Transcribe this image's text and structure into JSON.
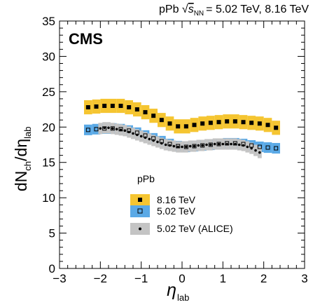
{
  "chart_data": {
    "type": "scatter",
    "header": {
      "system": "pPb",
      "sqrt_symbol": "√",
      "s_symbol": "s",
      "nn_sub": "NN",
      "energies": "= 5.02 TeV, 8.16 TeV"
    },
    "experiment": "CMS",
    "xlabel": {
      "main": "η",
      "sub": "lab"
    },
    "ylabel": {
      "parts": [
        "dN",
        "ch",
        "/dη",
        "lab"
      ]
    },
    "xlim": [
      -3,
      3
    ],
    "ylim": [
      0,
      35
    ],
    "x_ticks": [
      -3,
      -2,
      -1,
      0,
      1,
      2,
      3
    ],
    "x_tick_labels": [
      "−3",
      "−2",
      "−1",
      "0",
      "1",
      "2",
      "3"
    ],
    "y_ticks": [
      0,
      5,
      10,
      15,
      20,
      25,
      30,
      35
    ],
    "y_tick_labels": [
      "0",
      "5",
      "10",
      "15",
      "20",
      "25",
      "30",
      "35"
    ],
    "legend": {
      "title": "pPb",
      "position": "lower-center",
      "entries": [
        "8.16 TeV",
        "5.02 TeV",
        "5.02 TeV (ALICE)"
      ]
    },
    "series": [
      {
        "name": "8.16 TeV",
        "marker": "filled-square",
        "band_color": "#f5c531",
        "x": [
          -2.3,
          -2.1,
          -1.9,
          -1.7,
          -1.5,
          -1.3,
          -1.1,
          -0.9,
          -0.7,
          -0.5,
          -0.3,
          -0.1,
          0.1,
          0.3,
          0.5,
          0.7,
          0.9,
          1.1,
          1.3,
          1.5,
          1.7,
          1.9,
          2.1,
          2.3
        ],
        "y": [
          22.8,
          22.9,
          23.0,
          23.0,
          23.0,
          22.8,
          22.5,
          22.1,
          21.6,
          21.0,
          20.5,
          20.1,
          20.1,
          20.3,
          20.5,
          20.6,
          20.7,
          20.8,
          20.8,
          20.7,
          20.6,
          20.5,
          20.3,
          19.9
        ],
        "syst": 1.0
      },
      {
        "name": "5.02 TeV",
        "marker": "open-square",
        "band_color": "#5aa9e6",
        "x": [
          -2.3,
          -2.1,
          -1.9,
          -1.7,
          -1.5,
          -1.3,
          -1.1,
          -0.9,
          -0.7,
          -0.5,
          -0.3,
          -0.1,
          0.1,
          0.3,
          0.5,
          0.7,
          0.9,
          1.1,
          1.3,
          1.5,
          1.7,
          1.9,
          2.1,
          2.3
        ],
        "y": [
          19.6,
          19.7,
          19.8,
          19.8,
          19.7,
          19.5,
          19.2,
          18.8,
          18.4,
          18.0,
          17.6,
          17.3,
          17.2,
          17.3,
          17.4,
          17.5,
          17.6,
          17.7,
          17.7,
          17.6,
          17.4,
          17.2,
          17.1,
          17.0
        ],
        "syst": 0.75
      },
      {
        "name": "5.02 TeV (ALICE)",
        "marker": "small-dot",
        "band_color": "#c4c4c4",
        "x": [
          -2.0,
          -1.9,
          -1.8,
          -1.7,
          -1.6,
          -1.5,
          -1.4,
          -1.3,
          -1.2,
          -1.1,
          -1.0,
          -0.9,
          -0.8,
          -0.7,
          -0.6,
          -0.5,
          -0.4,
          -0.3,
          -0.2,
          -0.1,
          0.0,
          0.1,
          0.2,
          0.3,
          0.4,
          0.5,
          0.6,
          0.7,
          0.8,
          0.9,
          1.0,
          1.1,
          1.2,
          1.3,
          1.4,
          1.5,
          1.6,
          1.7,
          1.8,
          1.9
        ],
        "y": [
          19.8,
          19.9,
          19.9,
          19.8,
          19.7,
          19.6,
          19.5,
          19.3,
          19.1,
          18.9,
          18.7,
          18.5,
          18.3,
          18.1,
          17.9,
          17.7,
          17.5,
          17.4,
          17.3,
          17.2,
          17.2,
          17.2,
          17.3,
          17.3,
          17.4,
          17.4,
          17.5,
          17.5,
          17.6,
          17.6,
          17.6,
          17.6,
          17.6,
          17.6,
          17.5,
          17.4,
          17.2,
          17.0,
          16.7,
          16.4
        ],
        "syst": 0.8
      }
    ]
  }
}
